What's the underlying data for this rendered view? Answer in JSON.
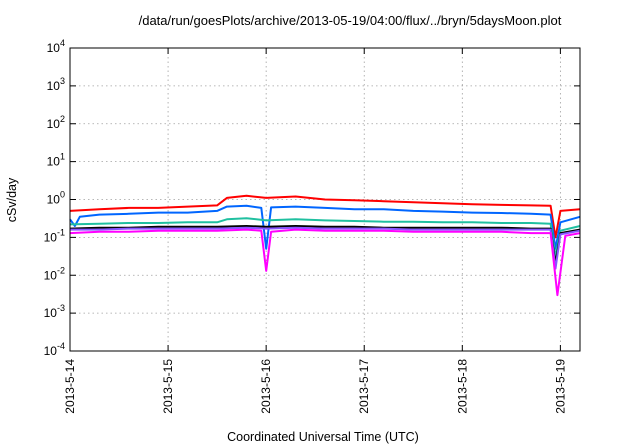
{
  "chart_data": {
    "type": "line",
    "title": "/data/run/goesPlots/archive/2013-05-19/04:00/flux/../bryn/5daysMoon.plot",
    "xlabel": "Coordinated Universal Time (UTC)",
    "ylabel": "cSv/day",
    "yscale": "log",
    "xlim": [
      0,
      5.2
    ],
    "ylim_exp": [
      -4,
      4
    ],
    "grid": true,
    "x_ticks": [
      {
        "x": 0,
        "label": "2013-5-14"
      },
      {
        "x": 1,
        "label": "2013-5-15"
      },
      {
        "x": 2,
        "label": "2013-5-16"
      },
      {
        "x": 3,
        "label": "2013-5-17"
      },
      {
        "x": 4,
        "label": "2013-5-18"
      },
      {
        "x": 5,
        "label": "2013-5-19"
      }
    ],
    "y_ticks": [
      {
        "exp": -4,
        "base": "10",
        "sup": "-4"
      },
      {
        "exp": -3,
        "base": "10",
        "sup": "-3"
      },
      {
        "exp": -2,
        "base": "10",
        "sup": "-2"
      },
      {
        "exp": -1,
        "base": "10",
        "sup": "-1"
      },
      {
        "exp": 0,
        "base": "10",
        "sup": "0"
      },
      {
        "exp": 1,
        "base": "10",
        "sup": "1"
      },
      {
        "exp": 2,
        "base": "10",
        "sup": "2"
      },
      {
        "exp": 3,
        "base": "10",
        "sup": "3"
      },
      {
        "exp": 4,
        "base": "10",
        "sup": "4"
      }
    ],
    "series": [
      {
        "color": "#ff0000",
        "values": [
          [
            0,
            0.5
          ],
          [
            0.3,
            0.55
          ],
          [
            0.6,
            0.6
          ],
          [
            0.9,
            0.6
          ],
          [
            1.2,
            0.65
          ],
          [
            1.5,
            0.7
          ],
          [
            1.6,
            1.1
          ],
          [
            1.8,
            1.25
          ],
          [
            2.0,
            1.1
          ],
          [
            2.3,
            1.2
          ],
          [
            2.6,
            1.0
          ],
          [
            2.9,
            0.95
          ],
          [
            3.2,
            0.9
          ],
          [
            3.5,
            0.85
          ],
          [
            3.8,
            0.8
          ],
          [
            4.1,
            0.75
          ],
          [
            4.4,
            0.72
          ],
          [
            4.7,
            0.7
          ],
          [
            4.9,
            0.68
          ],
          [
            4.95,
            0.1
          ],
          [
            5.0,
            0.5
          ],
          [
            5.2,
            0.55
          ]
        ]
      },
      {
        "color": "#0066ff",
        "values": [
          [
            0,
            0.3
          ],
          [
            0.05,
            0.2
          ],
          [
            0.1,
            0.35
          ],
          [
            0.3,
            0.4
          ],
          [
            0.6,
            0.42
          ],
          [
            0.9,
            0.45
          ],
          [
            1.2,
            0.45
          ],
          [
            1.5,
            0.5
          ],
          [
            1.6,
            0.65
          ],
          [
            1.8,
            0.68
          ],
          [
            1.95,
            0.6
          ],
          [
            2.0,
            0.05
          ],
          [
            2.05,
            0.62
          ],
          [
            2.3,
            0.65
          ],
          [
            2.6,
            0.6
          ],
          [
            2.9,
            0.55
          ],
          [
            3.2,
            0.55
          ],
          [
            3.5,
            0.5
          ],
          [
            3.8,
            0.48
          ],
          [
            4.1,
            0.45
          ],
          [
            4.4,
            0.44
          ],
          [
            4.7,
            0.42
          ],
          [
            4.9,
            0.4
          ],
          [
            4.95,
            0.05
          ],
          [
            5.0,
            0.25
          ],
          [
            5.2,
            0.35
          ]
        ]
      },
      {
        "color": "#20c0a0",
        "values": [
          [
            0,
            0.22
          ],
          [
            0.3,
            0.23
          ],
          [
            0.6,
            0.24
          ],
          [
            0.9,
            0.24
          ],
          [
            1.2,
            0.25
          ],
          [
            1.5,
            0.25
          ],
          [
            1.6,
            0.3
          ],
          [
            1.8,
            0.32
          ],
          [
            2.0,
            0.28
          ],
          [
            2.3,
            0.3
          ],
          [
            2.6,
            0.28
          ],
          [
            2.9,
            0.27
          ],
          [
            3.2,
            0.26
          ],
          [
            3.5,
            0.26
          ],
          [
            3.8,
            0.25
          ],
          [
            4.1,
            0.25
          ],
          [
            4.4,
            0.24
          ],
          [
            4.7,
            0.24
          ],
          [
            4.9,
            0.23
          ],
          [
            4.95,
            0.03
          ],
          [
            5.0,
            0.15
          ],
          [
            5.2,
            0.2
          ]
        ]
      },
      {
        "color": "#000000",
        "values": [
          [
            0,
            0.17
          ],
          [
            0.3,
            0.18
          ],
          [
            0.6,
            0.18
          ],
          [
            0.9,
            0.19
          ],
          [
            1.2,
            0.19
          ],
          [
            1.5,
            0.19
          ],
          [
            1.8,
            0.2
          ],
          [
            2.0,
            0.19
          ],
          [
            2.3,
            0.2
          ],
          [
            2.6,
            0.19
          ],
          [
            2.9,
            0.19
          ],
          [
            3.2,
            0.18
          ],
          [
            3.5,
            0.18
          ],
          [
            3.8,
            0.18
          ],
          [
            4.1,
            0.18
          ],
          [
            4.4,
            0.18
          ],
          [
            4.7,
            0.17
          ],
          [
            4.9,
            0.17
          ],
          [
            4.95,
            0.02
          ],
          [
            5.0,
            0.13
          ],
          [
            5.2,
            0.16
          ]
        ]
      },
      {
        "color": "#8855ff",
        "values": [
          [
            0,
            0.16
          ],
          [
            0.3,
            0.16
          ],
          [
            0.6,
            0.17
          ],
          [
            0.9,
            0.17
          ],
          [
            1.2,
            0.17
          ],
          [
            1.5,
            0.17
          ],
          [
            1.8,
            0.18
          ],
          [
            2.0,
            0.17
          ],
          [
            2.3,
            0.18
          ],
          [
            2.6,
            0.17
          ],
          [
            2.9,
            0.17
          ],
          [
            3.2,
            0.17
          ],
          [
            3.5,
            0.16
          ],
          [
            3.8,
            0.16
          ],
          [
            4.1,
            0.16
          ],
          [
            4.4,
            0.16
          ],
          [
            4.7,
            0.16
          ],
          [
            4.9,
            0.16
          ],
          [
            4.95,
            0.015
          ],
          [
            5.0,
            0.12
          ],
          [
            5.2,
            0.15
          ]
        ]
      },
      {
        "color": "#ff00ff",
        "values": [
          [
            0,
            0.13
          ],
          [
            0.3,
            0.14
          ],
          [
            0.6,
            0.14
          ],
          [
            0.9,
            0.15
          ],
          [
            1.2,
            0.15
          ],
          [
            1.5,
            0.15
          ],
          [
            1.8,
            0.16
          ],
          [
            1.95,
            0.15
          ],
          [
            2.0,
            0.013
          ],
          [
            2.05,
            0.14
          ],
          [
            2.3,
            0.16
          ],
          [
            2.6,
            0.15
          ],
          [
            2.9,
            0.15
          ],
          [
            3.2,
            0.15
          ],
          [
            3.5,
            0.14
          ],
          [
            3.8,
            0.14
          ],
          [
            4.1,
            0.14
          ],
          [
            4.4,
            0.14
          ],
          [
            4.7,
            0.13
          ],
          [
            4.9,
            0.13
          ],
          [
            4.97,
            0.003
          ],
          [
            5.05,
            0.11
          ],
          [
            5.2,
            0.13
          ]
        ]
      }
    ]
  }
}
